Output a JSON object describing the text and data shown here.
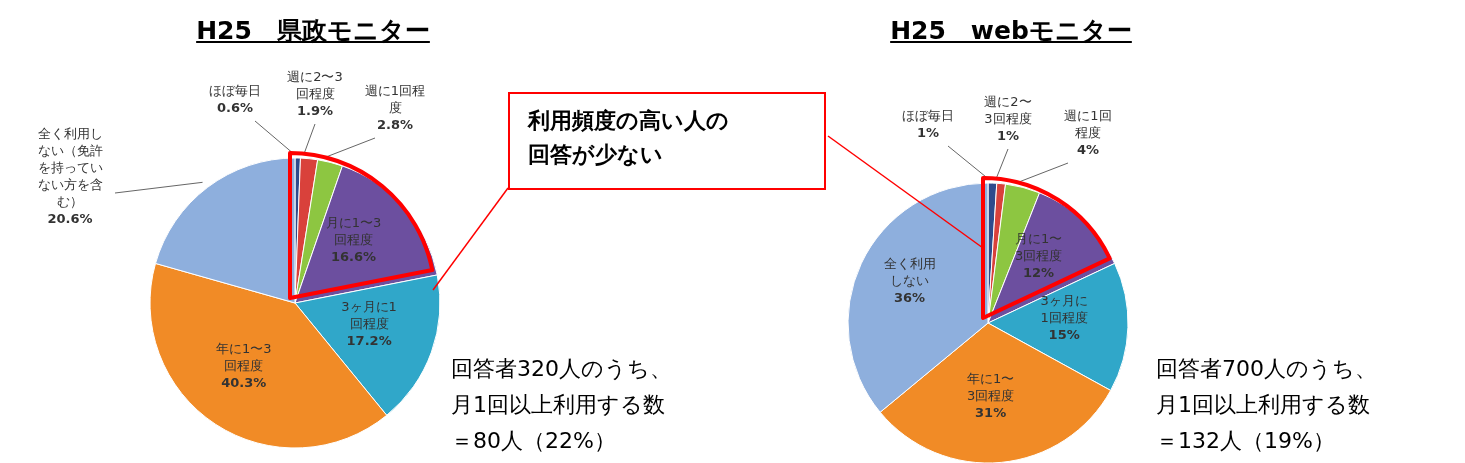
{
  "chart_data": [
    {
      "type": "pie",
      "title": "H25　県政モニター",
      "categories": [
        "ほぼ毎日",
        "週に2〜3回程度",
        "週に1回程度",
        "月に1〜3回程度",
        "3ヶ月に1回程度",
        "年に1〜3回程度",
        "全く利用しない（免許を持っていない方を含む）"
      ],
      "values": [
        0.6,
        1.9,
        2.8,
        16.6,
        17.2,
        40.3,
        20.6
      ],
      "value_labels": [
        "0.6%",
        "1.9%",
        "2.8%",
        "16.6%",
        "17.2%",
        "40.3%",
        "20.6%"
      ],
      "colors": [
        "#2f4b8c",
        "#d9413b",
        "#8dc641",
        "#6c4f9f",
        "#30a7c9",
        "#f18b26",
        "#8eafdd"
      ],
      "legend": false,
      "annotations": [
        "利用頻度の高い人の回答が少ない",
        "回答者320人のうち、月1回以上利用する数＝80人（22%）"
      ]
    },
    {
      "type": "pie",
      "title": "H25　webモニター",
      "categories": [
        "ほぼ毎日",
        "週に2〜3回程度",
        "週に1回程度",
        "月に1〜3回程度",
        "3ヶ月に1回程度",
        "年に1〜3回程度",
        "全く利用しない"
      ],
      "values": [
        1,
        1,
        4,
        12,
        15,
        31,
        36
      ],
      "value_labels": [
        "1%",
        "1%",
        "4%",
        "12%",
        "15%",
        "31%",
        "36%"
      ],
      "colors": [
        "#2f4b8c",
        "#d9413b",
        "#8dc641",
        "#6c4f9f",
        "#30a7c9",
        "#f18b26",
        "#8eafdd"
      ],
      "legend": false,
      "annotations": [
        "回答者700人のうち、月1回以上利用する数＝132人（19%）"
      ]
    }
  ]
}
